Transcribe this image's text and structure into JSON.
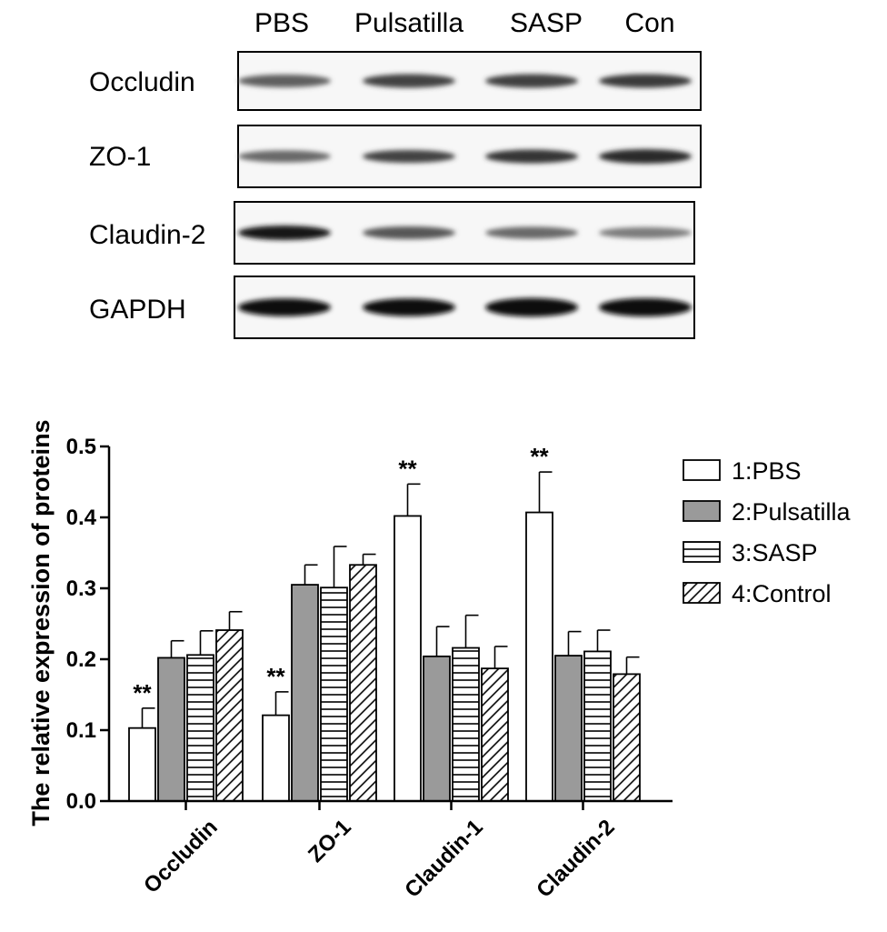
{
  "blot": {
    "lanes": [
      "PBS",
      "Pulsatilla",
      "SASP",
      "Con"
    ],
    "rows": [
      {
        "label": "Occludin",
        "intensity": [
          0.55,
          0.7,
          0.72,
          0.75
        ],
        "thickness": [
          0.45,
          0.5,
          0.5,
          0.5
        ]
      },
      {
        "label": "ZO-1",
        "intensity": [
          0.5,
          0.7,
          0.78,
          0.82
        ],
        "thickness": [
          0.4,
          0.45,
          0.5,
          0.55
        ]
      },
      {
        "label": "Claudin-2",
        "intensity": [
          0.92,
          0.6,
          0.5,
          0.4
        ],
        "thickness": [
          0.55,
          0.45,
          0.4,
          0.35
        ]
      },
      {
        "label": "GAPDH",
        "intensity": [
          0.98,
          0.97,
          0.98,
          0.98
        ],
        "thickness": [
          0.75,
          0.75,
          0.8,
          0.78
        ]
      }
    ]
  },
  "chart_data": {
    "type": "bar",
    "categories": [
      "Occludin",
      "ZO-1",
      "Claudin-1",
      "Claudin-2"
    ],
    "ylabel": "The relative expression of proteins",
    "ylim": [
      0,
      0.5
    ],
    "yticks": [
      "0.0",
      "0.1",
      "0.2",
      "0.3",
      "0.4",
      "0.5"
    ],
    "legend_position": "right",
    "series": [
      {
        "name": "1:PBS",
        "pattern": "white",
        "values": [
          0.103,
          0.121,
          0.402,
          0.407
        ],
        "errors": [
          0.028,
          0.033,
          0.045,
          0.057
        ]
      },
      {
        "name": "2:Pulsatilla",
        "pattern": "gray",
        "values": [
          0.202,
          0.305,
          0.204,
          0.205
        ],
        "errors": [
          0.024,
          0.028,
          0.042,
          0.034
        ]
      },
      {
        "name": "3:SASP",
        "pattern": "horizontal",
        "values": [
          0.206,
          0.301,
          0.216,
          0.211
        ],
        "errors": [
          0.034,
          0.058,
          0.046,
          0.03
        ]
      },
      {
        "name": "4:Control",
        "pattern": "diagonal",
        "values": [
          0.241,
          0.333,
          0.187,
          0.179
        ],
        "errors": [
          0.026,
          0.015,
          0.031,
          0.024
        ]
      }
    ],
    "annotations": [
      {
        "category": 0,
        "series": 0,
        "text": "**"
      },
      {
        "category": 1,
        "series": 0,
        "text": "**"
      },
      {
        "category": 2,
        "series": 0,
        "text": "**"
      },
      {
        "category": 3,
        "series": 0,
        "text": "**"
      }
    ],
    "colors": {
      "gray": "#9a9a9a",
      "line": "#000000",
      "fill": "#ffffff"
    }
  }
}
